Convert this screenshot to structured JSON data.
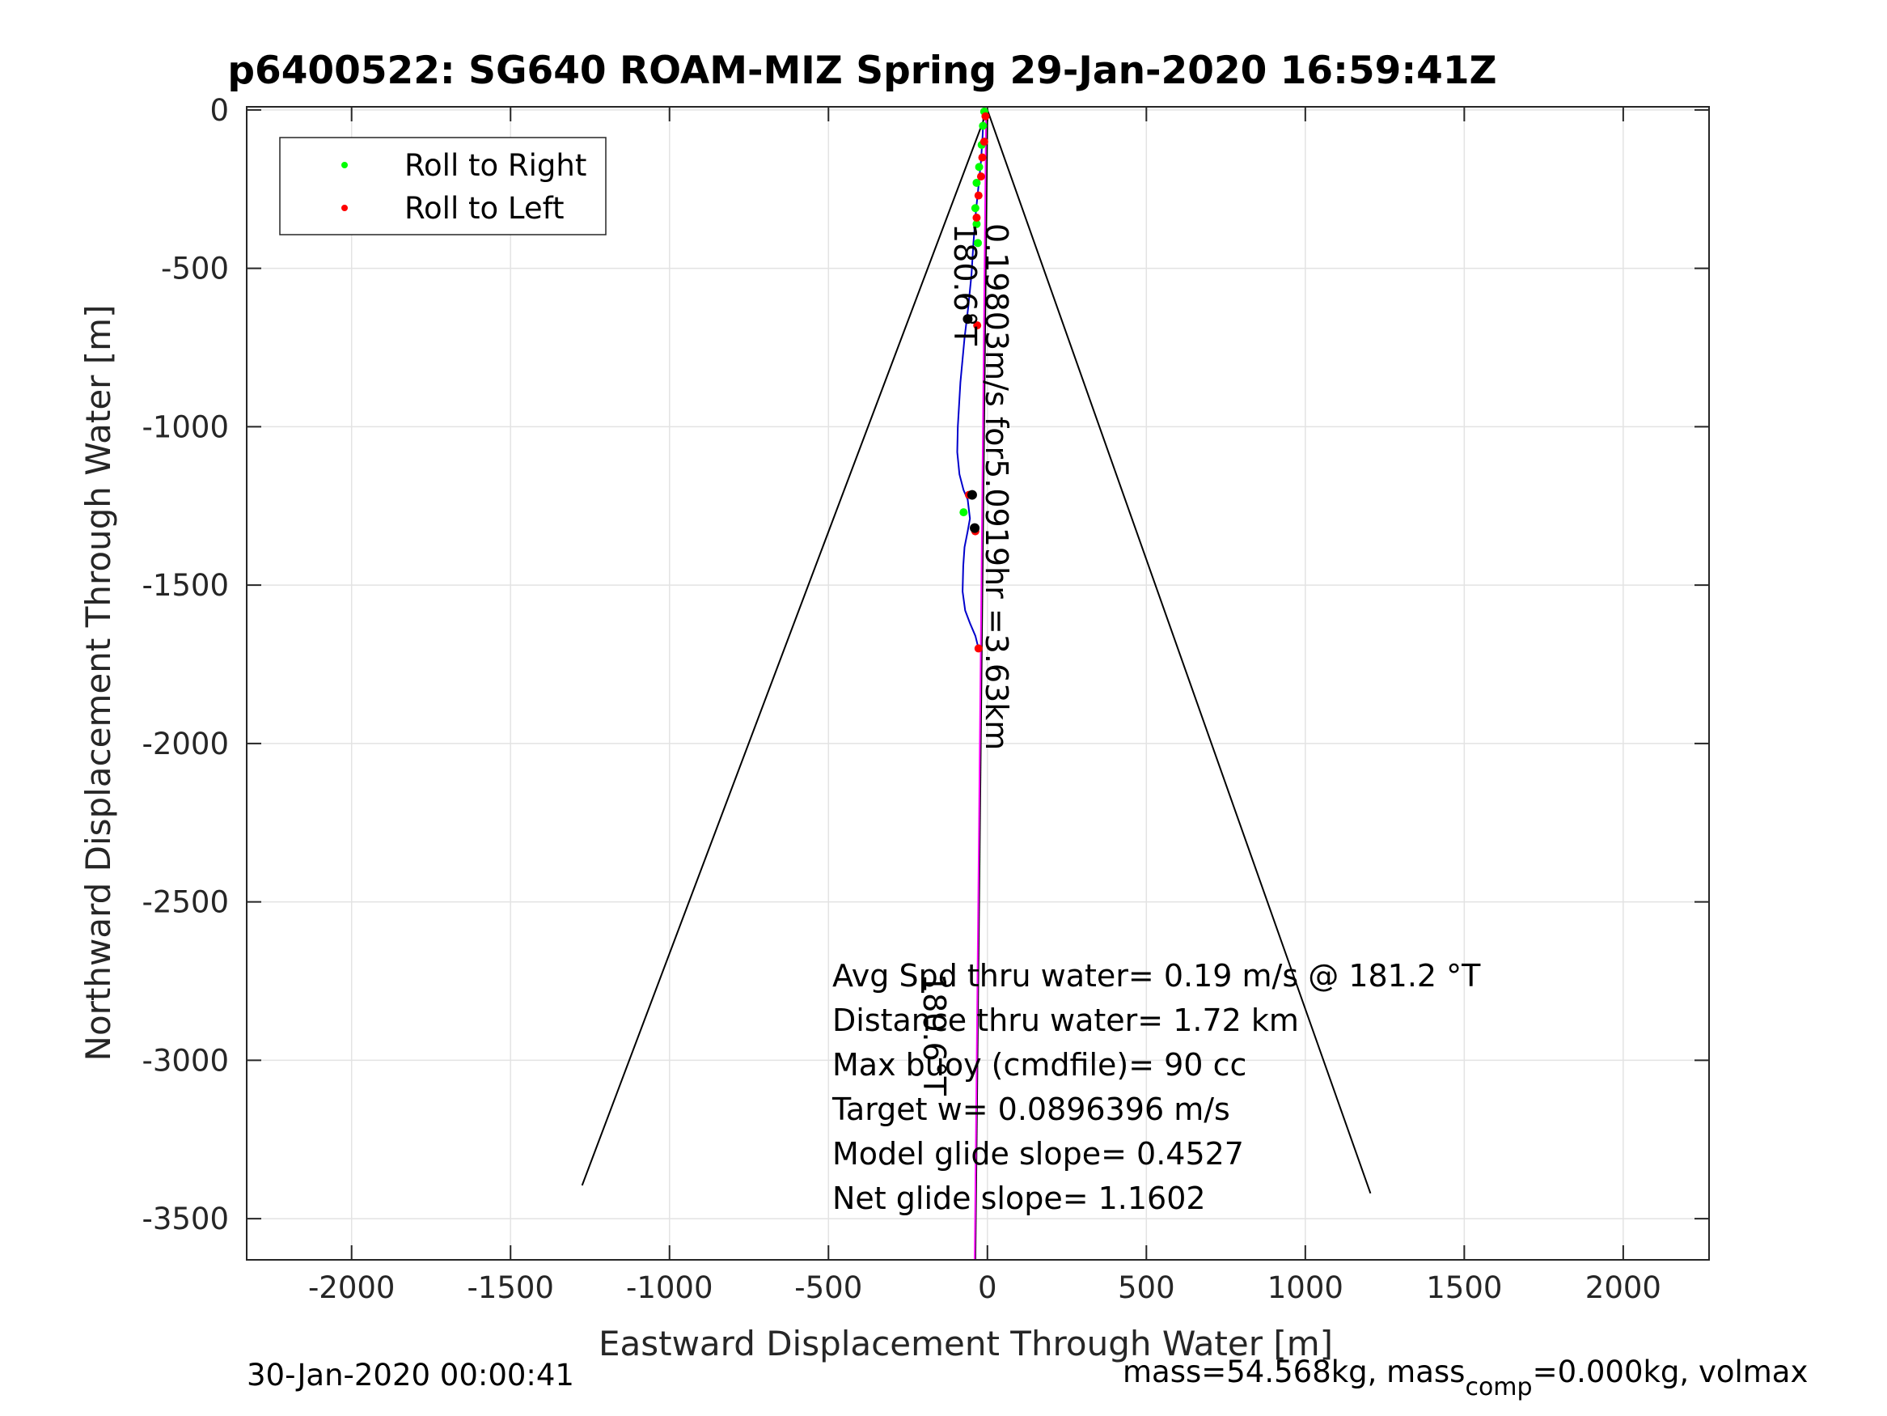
{
  "chart_data": {
    "type": "line",
    "title": "p6400522: SG640 ROAM-MIZ Spring 29-Jan-2020 16:59:41Z",
    "xlabel": "Eastward Displacement Through Water [m]",
    "ylabel": "Northward Displacement Through Water [m]",
    "xlim": [
      -2330,
      2270
    ],
    "ylim": [
      -3630,
      10
    ],
    "xticks": [
      -2000,
      -1500,
      -1000,
      -500,
      0,
      500,
      1000,
      1500,
      2000
    ],
    "yticks": [
      0,
      -500,
      -1000,
      -1500,
      -2000,
      -2500,
      -3000,
      -3500
    ],
    "xtick_labels": [
      "-2000",
      "-1500",
      "-1000",
      "-500",
      "0",
      "500",
      "1000",
      "1500",
      "2000"
    ],
    "ytick_labels": [
      "0",
      "-500",
      "-1000",
      "-1500",
      "-2000",
      "-2500",
      "-3000",
      "-3500"
    ],
    "grid": true,
    "legend_position": "top-left",
    "legend": [
      {
        "label": "Roll to Right",
        "color": "#00ff00"
      },
      {
        "label": "Roll to Left",
        "color": "#ff0000"
      }
    ],
    "series": [
      {
        "color": "#0000cc",
        "x": [
          -12,
          -15,
          -20,
          -28,
          -36,
          -44,
          -50,
          -60,
          -72,
          -85,
          -93,
          -95,
          -88,
          -75,
          -62,
          -55,
          -62,
          -72,
          -76,
          -78,
          -70,
          -55,
          -38,
          -28
        ],
        "y": [
          0,
          -80,
          -160,
          -240,
          -320,
          -420,
          -520,
          -620,
          -720,
          -860,
          -1000,
          -1080,
          -1150,
          -1200,
          -1230,
          -1290,
          -1330,
          -1380,
          -1440,
          -1520,
          -1580,
          -1620,
          -1660,
          -1700
        ]
      },
      {
        "color": "#000000",
        "x": [
          -1275,
          0,
          1205
        ],
        "y": [
          -3395,
          0,
          -3420
        ]
      },
      {
        "color": "#000000",
        "x": [
          0,
          -38
        ],
        "y": [
          0,
          -3630
        ]
      },
      {
        "color": "#ff00ff",
        "x": [
          -4,
          -40
        ],
        "y": [
          0,
          -3630
        ]
      }
    ],
    "points_roll_right": {
      "color": "#00ff00",
      "x": [
        -10,
        -14,
        -18,
        -26,
        -34,
        -38,
        -34,
        -30,
        -75
      ],
      "y": [
        -5,
        -50,
        -110,
        -180,
        -230,
        -310,
        -360,
        -420,
        -1270
      ]
    },
    "points_roll_left": {
      "color": "#ff0000",
      "x": [
        -6,
        -10,
        -16,
        -20,
        -28,
        -34,
        -32,
        -58,
        -38,
        -28
      ],
      "y": [
        -20,
        -100,
        -150,
        -210,
        -270,
        -340,
        -680,
        -1215,
        -1330,
        -1700
      ]
    },
    "points_black": {
      "color": "#000000",
      "x": [
        -62,
        -48,
        -40
      ],
      "y": [
        -660,
        -1215,
        -1320
      ]
    },
    "annotations": {
      "current_vector": "0.19803m/s for5.0919hr =3.63km",
      "heading_top": "180.6°T",
      "heading_bottom": "180.6°T"
    },
    "stats": [
      "Avg Spd thru water=  0.19 m/s @ 181.2 °T",
      "Distance thru water=  1.72 km",
      "Max buoy (cmdfile)= 90 cc",
      "Target w= 0.0896396 m/s",
      "Model glide slope= 0.4527",
      "Net glide slope= 1.1602"
    ]
  },
  "footer": {
    "timestamp": "30-Jan-2020 00:00:41",
    "mass_prefix": "mass=54.568kg, mass",
    "mass_sub": "comp",
    "mass_suffix": "=0.000kg, volmax"
  }
}
